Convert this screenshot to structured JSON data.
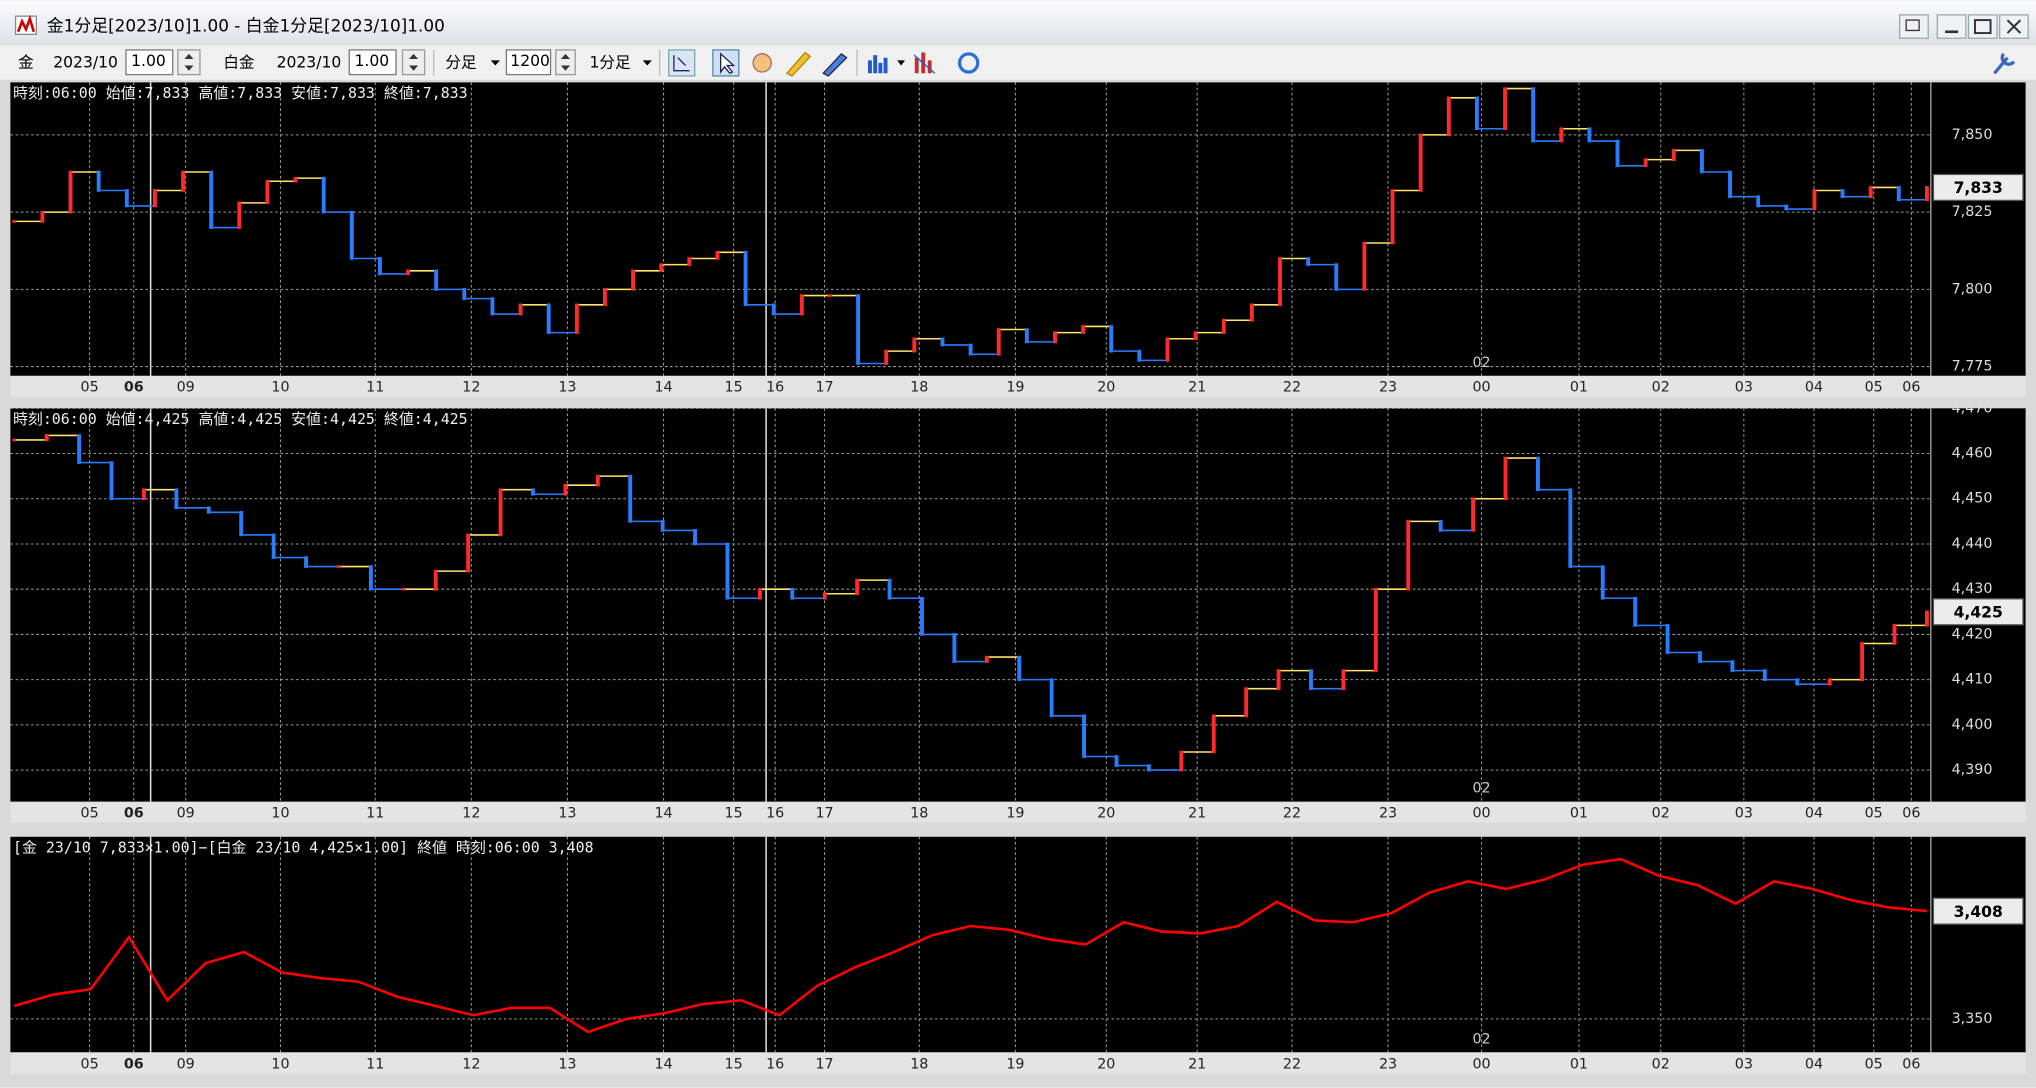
{
  "window": {
    "title": "金1分足[2023/10]1.00 - 白金1分足[2023/10]1.00"
  },
  "toolbar": {
    "symbol1": "金",
    "month1": "2023/10",
    "mult1": "1.00",
    "symbol2": "白金",
    "month2": "2023/10",
    "mult2": "1.00",
    "unit": "分足",
    "count": "1200",
    "period": "1分足"
  },
  "chart_data": [
    {
      "type": "candle-line",
      "info": "時刻:06:00 始値:7,833 高値:7,833 安値:7,833 終値:7,833",
      "marker": "02",
      "x_labels": [
        "05",
        "06",
        "09",
        "10",
        "11",
        "12",
        "13",
        "14",
        "15",
        "16",
        "17",
        "18",
        "19",
        "20",
        "21",
        "22",
        "23",
        "00",
        "01",
        "02",
        "03",
        "04",
        "05",
        "06"
      ],
      "ylim": [
        7772,
        7867
      ],
      "yticks": [
        {
          "value": 7775,
          "label": "7,775"
        },
        {
          "value": 7800,
          "label": "7,800"
        },
        {
          "value": 7825,
          "label": "7,825"
        },
        {
          "value": 7850,
          "label": "7,850"
        }
      ],
      "last": {
        "value": 7833,
        "label": "7,833"
      },
      "up_color": "#ff2a2a",
      "down_color": "#2a7cff",
      "values": [
        7822,
        7825,
        7838,
        7832,
        7827,
        7832,
        7838,
        7820,
        7828,
        7835,
        7836,
        7825,
        7810,
        7805,
        7806,
        7800,
        7797,
        7792,
        7795,
        7786,
        7795,
        7800,
        7806,
        7808,
        7810,
        7812,
        7795,
        7792,
        7798,
        7798,
        7776,
        7780,
        7784,
        7782,
        7779,
        7787,
        7783,
        7786,
        7788,
        7780,
        7777,
        7784,
        7786,
        7790,
        7795,
        7810,
        7808,
        7800,
        7815,
        7832,
        7850,
        7862,
        7852,
        7865,
        7848,
        7852,
        7848,
        7840,
        7842,
        7845,
        7838,
        7830,
        7827,
        7826,
        7832,
        7830,
        7833,
        7829,
        7833
      ]
    },
    {
      "type": "candle-line",
      "info": "時刻:06:00 始値:4,425 高値:4,425 安値:4,425 終値:4,425",
      "marker": "02",
      "x_labels": [
        "05",
        "06",
        "09",
        "10",
        "11",
        "12",
        "13",
        "14",
        "15",
        "16",
        "17",
        "18",
        "19",
        "20",
        "21",
        "22",
        "23",
        "00",
        "01",
        "02",
        "03",
        "04",
        "05",
        "06"
      ],
      "ylim": [
        4383,
        4470
      ],
      "yticks": [
        {
          "value": 4390,
          "label": "4,390"
        },
        {
          "value": 4400,
          "label": "4,400"
        },
        {
          "value": 4410,
          "label": "4,410"
        },
        {
          "value": 4420,
          "label": "4,420"
        },
        {
          "value": 4430,
          "label": "4,430"
        },
        {
          "value": 4440,
          "label": "4,440"
        },
        {
          "value": 4450,
          "label": "4,450"
        },
        {
          "value": 4460,
          "label": "4,460"
        },
        {
          "value": 4470,
          "label": "4,470"
        }
      ],
      "last": {
        "value": 4425,
        "label": "4,425"
      },
      "up_color": "#ff2a2a",
      "down_color": "#2a7cff",
      "values": [
        4463,
        4464,
        4458,
        4450,
        4452,
        4448,
        4447,
        4442,
        4437,
        4435,
        4435,
        4430,
        4430,
        4434,
        4442,
        4452,
        4451,
        4453,
        4455,
        4445,
        4443,
        4440,
        4428,
        4430,
        4428,
        4429,
        4432,
        4428,
        4420,
        4414,
        4415,
        4410,
        4402,
        4393,
        4391,
        4390,
        4394,
        4402,
        4408,
        4412,
        4408,
        4412,
        4430,
        4445,
        4443,
        4450,
        4459,
        4452,
        4435,
        4428,
        4422,
        4416,
        4414,
        4412,
        4410,
        4409,
        4410,
        4418,
        4422,
        4425
      ]
    },
    {
      "type": "line",
      "info": "[金 23/10 7,833×1.00]−[白金 23/10 4,425×1.00] 終値 時刻:06:00 3,408",
      "marker": "02",
      "x_labels": [
        "05",
        "06",
        "09",
        "10",
        "11",
        "12",
        "13",
        "14",
        "15",
        "16",
        "17",
        "18",
        "19",
        "20",
        "21",
        "22",
        "23",
        "00",
        "01",
        "02",
        "03",
        "04",
        "05",
        "06"
      ],
      "ylim": [
        3332,
        3448
      ],
      "yticks": [
        {
          "value": 3350,
          "label": "3,350"
        }
      ],
      "last": {
        "value": 3408,
        "label": "3,408"
      },
      "color": "#ff0000",
      "values": [
        3357,
        3363,
        3366,
        3394,
        3360,
        3380,
        3386,
        3375,
        3372,
        3370,
        3362,
        3357,
        3352,
        3356,
        3356,
        3343,
        3350,
        3353,
        3358,
        3360,
        3352,
        3368,
        3378,
        3386,
        3395,
        3400,
        3398,
        3393,
        3390,
        3402,
        3397,
        3396,
        3400,
        3413,
        3403,
        3402,
        3407,
        3418,
        3424,
        3420,
        3425,
        3433,
        3436,
        3427,
        3422,
        3412,
        3424,
        3420,
        3414,
        3410,
        3408
      ]
    }
  ]
}
